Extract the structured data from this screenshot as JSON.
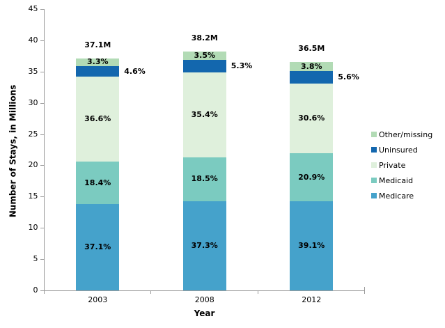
{
  "chart_data": {
    "type": "bar",
    "stacked": true,
    "xlabel": "Year",
    "ylabel": "Number of Stays, in Millions",
    "ylim": [
      0,
      45
    ],
    "yticks": [
      0,
      5,
      10,
      15,
      20,
      25,
      30,
      35,
      40,
      45
    ],
    "grid": false,
    "categories": [
      "2003",
      "2008",
      "2012"
    ],
    "totals": [
      37.1,
      38.2,
      36.5
    ],
    "total_labels": [
      "37.1M",
      "38.2M",
      "36.5M"
    ],
    "series": [
      {
        "name": "Medicare",
        "color": "#45A2CB",
        "percents": [
          37.1,
          37.3,
          39.1
        ],
        "labels": [
          "37.1%",
          "37.3%",
          "39.1%"
        ],
        "label_placement": "inside"
      },
      {
        "name": "Medicaid",
        "color": "#7BCBC0",
        "percents": [
          18.4,
          18.5,
          20.9
        ],
        "labels": [
          "18.4%",
          "18.5%",
          "20.9%"
        ],
        "label_placement": "inside"
      },
      {
        "name": "Private",
        "color": "#DFF0DC",
        "percents": [
          36.6,
          35.4,
          30.6
        ],
        "labels": [
          "36.6%",
          "35.4%",
          "30.6%"
        ],
        "label_placement": "inside"
      },
      {
        "name": "Uninsured",
        "color": "#1367AE",
        "percents": [
          4.6,
          5.3,
          5.6
        ],
        "labels": [
          "4.6%",
          "5.3%",
          "5.6%"
        ],
        "label_placement": "outside"
      },
      {
        "name": "Other/missing",
        "color": "#B2DBB5",
        "percents": [
          3.3,
          3.5,
          3.8
        ],
        "labels": [
          "3.3%",
          "3.5%",
          "3.8%"
        ],
        "label_placement": "inside"
      }
    ],
    "legend": {
      "position": "right",
      "entries": [
        "Other/missing",
        "Uninsured",
        "Private",
        "Medicaid",
        "Medicare"
      ]
    },
    "colors": {
      "axis": "#9A9A9A",
      "text": "#000000",
      "background": "#FFFFFF"
    }
  }
}
